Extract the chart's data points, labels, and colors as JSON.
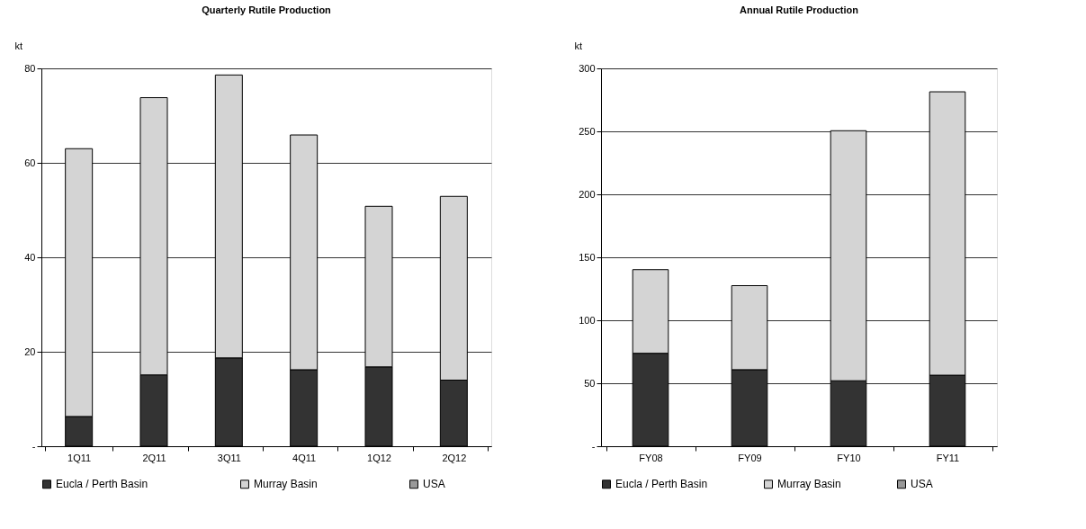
{
  "chart_data": [
    {
      "type": "bar",
      "title": "Quarterly Rutile Production",
      "ylabel": "kt",
      "stacked": true,
      "grid": "y",
      "legend": "bottom",
      "categories": [
        "1Q11",
        "2Q11",
        "3Q11",
        "4Q11",
        "1Q12",
        "2Q12"
      ],
      "series": [
        {
          "name": "Eucla / Perth Basin",
          "color": "#333333",
          "values": [
            6.3,
            15.1,
            18.7,
            16.2,
            16.8,
            14.0
          ]
        },
        {
          "name": "Murray Basin",
          "color": "#d4d4d4",
          "values": [
            56.7,
            58.7,
            59.9,
            49.7,
            34.0,
            38.9
          ]
        },
        {
          "name": "USA",
          "color": "#999999",
          "values": [
            0,
            0,
            0,
            0,
            0,
            0
          ]
        }
      ],
      "ylim": [
        0,
        80
      ],
      "yticks": [
        {
          "value": 0,
          "label": "-"
        },
        20,
        40,
        60,
        80
      ]
    },
    {
      "type": "bar",
      "title": "Annual Rutile Production",
      "ylabel": "kt",
      "stacked": true,
      "grid": "y",
      "legend": "bottom",
      "categories": [
        "FY08",
        "FY09",
        "FY10",
        "FY11"
      ],
      "series": [
        {
          "name": "Eucla / Perth Basin",
          "color": "#333333",
          "values": [
            73.8,
            60.8,
            52.0,
            56.4
          ]
        },
        {
          "name": "Murray Basin",
          "color": "#d4d4d4",
          "values": [
            66.4,
            66.7,
            198.5,
            225.0
          ]
        },
        {
          "name": "USA",
          "color": "#999999",
          "values": [
            0,
            0,
            0,
            0
          ]
        }
      ],
      "ylim": [
        0,
        300
      ],
      "yticks": [
        {
          "value": 0,
          "label": "-"
        },
        50,
        100,
        150,
        200,
        250,
        300
      ]
    }
  ]
}
